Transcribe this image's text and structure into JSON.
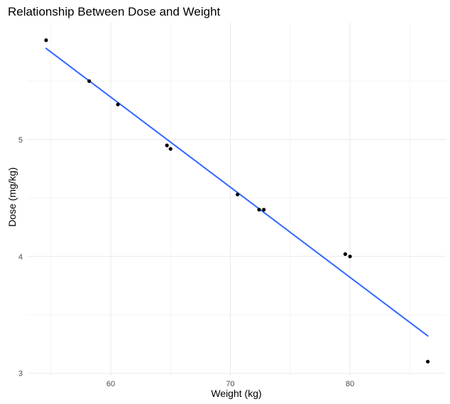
{
  "chart_data": {
    "type": "scatter",
    "title": "Relationship Between Dose and Weight",
    "xlabel": "Weight (kg)",
    "ylabel": "Dose (mg/kg)",
    "x_ticks": [
      60,
      70,
      80
    ],
    "y_ticks": [
      3,
      4,
      5
    ],
    "xlim": [
      53,
      88
    ],
    "ylim": [
      2.98,
      6.0
    ],
    "grid": true,
    "legend": "none",
    "points": [
      {
        "x": 54.6,
        "y": 5.85
      },
      {
        "x": 58.2,
        "y": 5.5
      },
      {
        "x": 60.6,
        "y": 5.3
      },
      {
        "x": 64.7,
        "y": 4.95
      },
      {
        "x": 65.0,
        "y": 4.92
      },
      {
        "x": 70.6,
        "y": 4.53
      },
      {
        "x": 72.4,
        "y": 4.4
      },
      {
        "x": 72.8,
        "y": 4.4
      },
      {
        "x": 79.6,
        "y": 4.02
      },
      {
        "x": 80.0,
        "y": 4.0
      },
      {
        "x": 86.5,
        "y": 3.1
      }
    ],
    "trend_line": {
      "x": [
        54.6,
        86.5
      ],
      "y": [
        5.78,
        3.32
      ]
    },
    "colors": {
      "points": "#000000",
      "trend_line": "#3366ff",
      "grid_major": "#ebebeb",
      "grid_minor": "#f5f5f5",
      "tick_text": "#4d4d4d"
    }
  }
}
